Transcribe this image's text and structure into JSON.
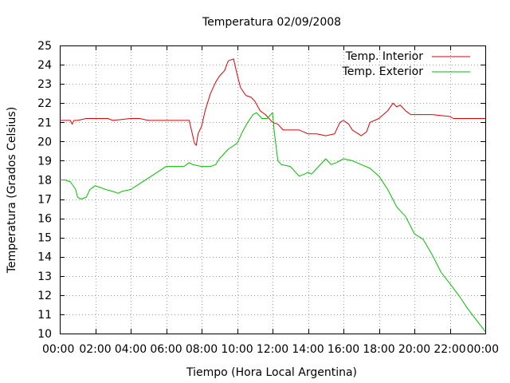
{
  "chart_data": {
    "type": "line",
    "title": "Temperatura 02/09/2008",
    "xlabel": "Tiempo (Hora Local Argentina)",
    "ylabel": "Temperatura (Grados Celsius)",
    "xlim": [
      0,
      24
    ],
    "ylim": [
      10,
      25
    ],
    "grid": true,
    "legend_position": "top-right",
    "x_tick_labels": [
      "00:00",
      "02:00",
      "04:00",
      "06:00",
      "08:00",
      "10:00",
      "12:00",
      "14:00",
      "16:00",
      "18:00",
      "20:00",
      "22:00",
      "00:00"
    ],
    "y_ticks": [
      10,
      11,
      12,
      13,
      14,
      15,
      16,
      17,
      18,
      19,
      20,
      21,
      22,
      23,
      24,
      25
    ],
    "series": [
      {
        "name": "Temp. Interior",
        "color": "#e00000",
        "x": [
          0,
          0.6,
          0.7,
          0.8,
          1.0,
          1.5,
          2.0,
          2.7,
          3.0,
          4.0,
          4.5,
          5.0,
          6.0,
          7.0,
          7.3,
          7.5,
          7.6,
          7.7,
          7.8,
          8.0,
          8.2,
          8.5,
          8.8,
          9.0,
          9.3,
          9.5,
          9.8,
          10.0,
          10.2,
          10.5,
          10.8,
          11.0,
          11.3,
          11.6,
          12.0,
          12.3,
          12.6,
          13.0,
          13.5,
          14.0,
          14.5,
          15.0,
          15.5,
          15.8,
          16.0,
          16.3,
          16.5,
          17.0,
          17.3,
          17.5,
          18.0,
          18.5,
          18.8,
          19.0,
          19.2,
          19.5,
          19.8,
          20.0,
          21.0,
          22.0,
          22.2,
          23.0,
          24.0
        ],
        "y": [
          21.1,
          21.1,
          20.9,
          21.1,
          21.1,
          21.2,
          21.2,
          21.2,
          21.1,
          21.2,
          21.2,
          21.1,
          21.1,
          21.1,
          21.1,
          20.3,
          19.9,
          19.8,
          20.4,
          20.8,
          21.6,
          22.5,
          23.1,
          23.4,
          23.7,
          24.2,
          24.3,
          23.5,
          22.8,
          22.4,
          22.3,
          22.1,
          21.6,
          21.4,
          21.0,
          20.9,
          20.6,
          20.6,
          20.6,
          20.4,
          20.4,
          20.3,
          20.4,
          21.0,
          21.1,
          20.9,
          20.6,
          20.3,
          20.5,
          21.0,
          21.2,
          21.6,
          22.0,
          21.8,
          21.9,
          21.6,
          21.4,
          21.4,
          21.4,
          21.3,
          21.2,
          21.2,
          21.2
        ]
      },
      {
        "name": "Temp. Exterior",
        "color": "#00c000",
        "x": [
          0,
          0.3,
          0.6,
          0.9,
          1.0,
          1.2,
          1.5,
          1.7,
          2.0,
          2.3,
          2.6,
          3.0,
          3.3,
          3.5,
          4.0,
          4.5,
          5.0,
          5.5,
          6.0,
          6.5,
          7.0,
          7.3,
          7.5,
          8.0,
          8.5,
          8.8,
          9.0,
          9.5,
          10.0,
          10.3,
          10.6,
          10.9,
          11.1,
          11.4,
          11.7,
          12.0,
          12.1,
          12.3,
          12.5,
          13.0,
          13.5,
          13.8,
          14.0,
          14.2,
          14.5,
          15.0,
          15.3,
          15.6,
          16.0,
          16.5,
          17.0,
          17.5,
          18.0,
          18.5,
          19.0,
          19.5,
          20.0,
          20.5,
          21.0,
          21.5,
          22.0,
          22.5,
          23.0,
          23.5,
          24.0
        ],
        "y": [
          18.0,
          18.0,
          17.9,
          17.5,
          17.1,
          17.0,
          17.1,
          17.5,
          17.7,
          17.6,
          17.5,
          17.4,
          17.3,
          17.4,
          17.5,
          17.8,
          18.1,
          18.4,
          18.7,
          18.7,
          18.7,
          18.9,
          18.8,
          18.7,
          18.7,
          18.8,
          19.1,
          19.6,
          19.9,
          20.5,
          21.0,
          21.4,
          21.5,
          21.2,
          21.2,
          21.5,
          20.5,
          19.0,
          18.8,
          18.7,
          18.2,
          18.3,
          18.4,
          18.3,
          18.6,
          19.1,
          18.8,
          18.9,
          19.1,
          19.0,
          18.8,
          18.6,
          18.2,
          17.5,
          16.6,
          16.1,
          15.2,
          14.9,
          14.1,
          13.2,
          12.6,
          12.0,
          11.3,
          10.7,
          10.1
        ]
      }
    ]
  }
}
